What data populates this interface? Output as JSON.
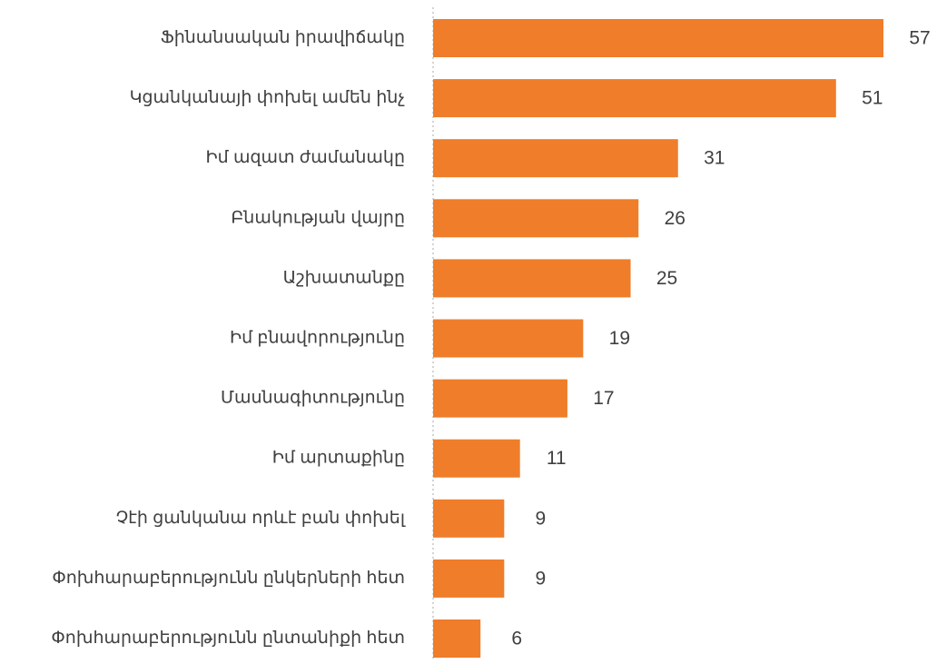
{
  "chart_data": {
    "type": "bar",
    "orientation": "horizontal",
    "categories": [
      "Ֆինանսական իրավիճակը",
      "Կցանկանայի փոխել ամեն ինչ",
      "Իմ ազատ ժամանակը",
      "Բնակության վայրը",
      "Աշխատանքը",
      "Իմ բնավորությունը",
      "Մասնագիտությունը",
      "Իմ արտաքինը",
      "Չէի ցանկանա որևէ բան փոխել",
      "Փոխհարաբերությունն ընկերների հետ",
      "Փոխհարաբերությունն ընտանիքի հետ"
    ],
    "values": [
      57,
      51,
      31,
      26,
      25,
      19,
      17,
      11,
      9,
      9,
      6
    ],
    "color": "#ef7d2a",
    "xlim": [
      0,
      57
    ]
  }
}
